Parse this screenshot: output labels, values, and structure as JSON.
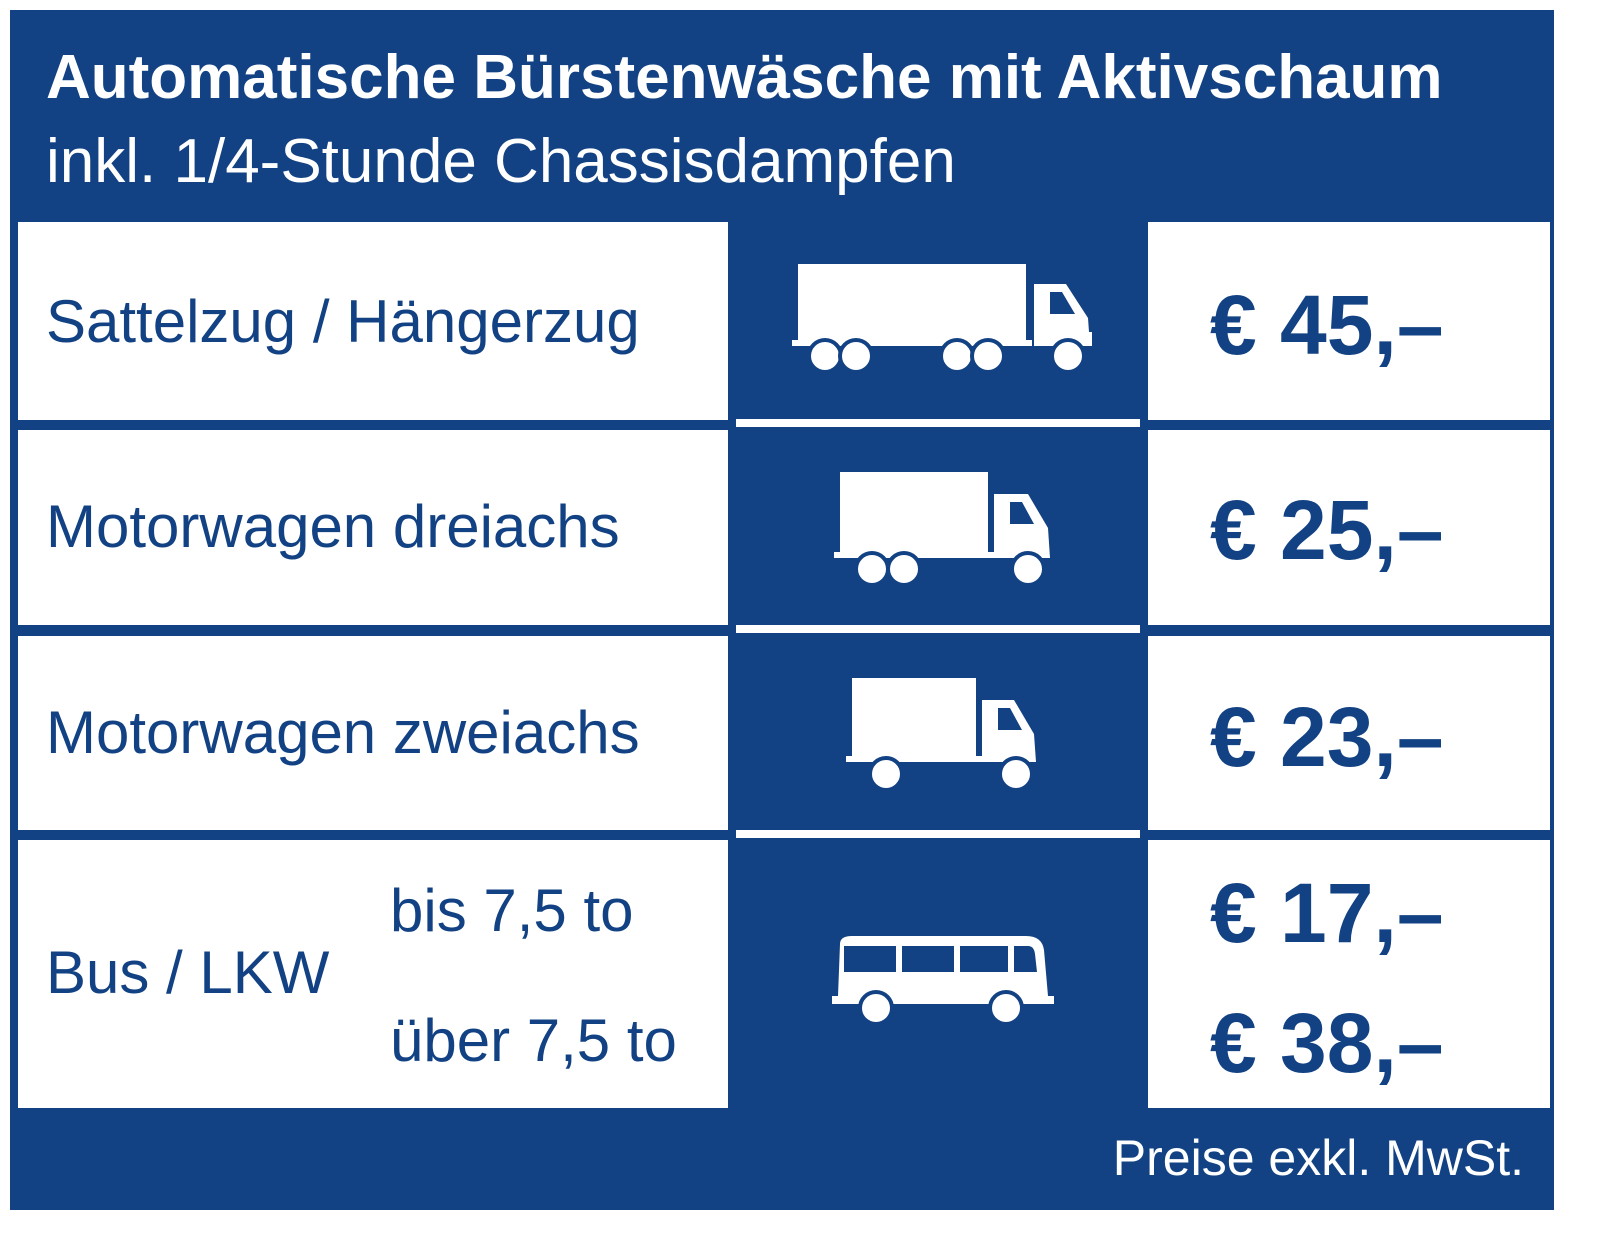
{
  "header": {
    "title": "Automatische Bürstenwäsche mit Aktivschaum",
    "subtitle": "inkl. 1/4-Stunde Chassisdampfen"
  },
  "rows": [
    {
      "label": "Sattelzug / Hängerzug",
      "price": "€ 45,–",
      "icon": "semi-truck-icon"
    },
    {
      "label": "Motorwagen dreiachs",
      "price": "€ 25,–",
      "icon": "three-axle-truck-icon"
    },
    {
      "label": "Motorwagen zweiachs",
      "price": "€ 23,–",
      "icon": "two-axle-truck-icon"
    },
    {
      "label": "Bus / LKW",
      "sub_options": [
        {
          "label": "bis 7,5 to",
          "price": "€ 17,–"
        },
        {
          "label": "über 7,5 to",
          "price": "€ 38,–"
        }
      ],
      "icon": "bus-icon"
    }
  ],
  "footer": {
    "note": "Preise exkl. MwSt."
  },
  "colors": {
    "brand_blue": "#124283",
    "background": "#ffffff"
  }
}
